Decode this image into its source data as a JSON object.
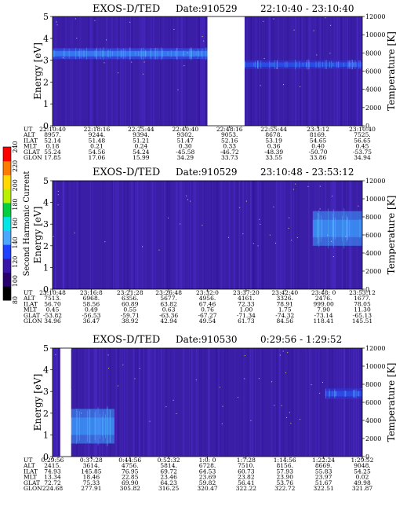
{
  "colorbar": {
    "label": "Second Harmonic Current",
    "ticks": [
      "80",
      "100",
      "120",
      "140",
      "160",
      "180",
      "200",
      "220",
      "240"
    ],
    "colors": [
      "#000000",
      "#2a006e",
      "#3a16a8",
      "#1e40ff",
      "#4aa6ff",
      "#00e5e5",
      "#00d040",
      "#b8f000",
      "#ffd800",
      "#ff7a00",
      "#ff0000"
    ]
  },
  "chart_data": [
    {
      "type": "heatmap",
      "title": "EXOS-D/TED",
      "date_label": "Date:910529",
      "time_range": "22:10:40 - 23:10:40",
      "ylabel": "Energy [eV]",
      "ylabel_right": "Temperature [K]",
      "ylim": [
        0,
        5
      ],
      "yticks": [
        "0",
        "1",
        "2",
        "3",
        "4",
        "5"
      ],
      "y2lim": [
        0,
        12000
      ],
      "y2ticks": [
        "0",
        "2000",
        "4000",
        "6000",
        "8000",
        "10000",
        "12000"
      ],
      "data_gap": [
        0.5,
        0.62
      ],
      "bands": [
        {
          "x0": 0.0,
          "x1": 0.5,
          "y_center": 3.3,
          "y_width": 0.5,
          "level": 140
        },
        {
          "x0": 0.62,
          "x1": 1.0,
          "y_center": 2.8,
          "y_width": 0.4,
          "level": 130
        }
      ],
      "table": {
        "row_labels": [
          "UT",
          "ALT",
          "ILAT",
          "MLT",
          "GLAT",
          "GLON"
        ],
        "columns": [
          [
            "22:10:40",
            "8957.",
            "52.14",
            "0.18",
            "55.24",
            "17.85"
          ],
          [
            "22:18:16",
            "9244.",
            "51.48",
            "0.21",
            "54.56",
            "17.06"
          ],
          [
            "22:25:44",
            "9394.",
            "51.21",
            "0.24",
            "54.24",
            "15.99"
          ],
          [
            "22:40:40",
            "9302.",
            "51.47",
            "0.30",
            "-45.58",
            "34.29"
          ],
          [
            "22:48:16",
            "9053.",
            "52.16",
            "0.33",
            "-46.72",
            "33.73"
          ],
          [
            "22:55:44",
            "8678.",
            "53.19",
            "0.36",
            "-48.39",
            "33.55"
          ],
          [
            "23:3:12",
            "8169.",
            "54.65",
            "0.40",
            "-50.70",
            "33.86"
          ],
          [
            "23:10:40",
            "7525.",
            "56.65",
            "0.45",
            "-53.75",
            "34.94"
          ]
        ]
      }
    },
    {
      "type": "heatmap",
      "title": "EXOS-D/TED",
      "date_label": "Date:910529",
      "time_range": "23:10:48 - 23:53:12",
      "ylabel": "Energy [eV]",
      "ylabel_right": "Temperature [K]",
      "ylim": [
        0,
        5
      ],
      "yticks": [
        "0",
        "1",
        "2",
        "3",
        "4",
        "5"
      ],
      "y2lim": [
        0,
        12000
      ],
      "y2ticks": [
        "0",
        "2000",
        "4000",
        "6000",
        "8000",
        "10000",
        "12000"
      ],
      "bands": [
        {
          "x0": 0.84,
          "x1": 1.0,
          "y_center": 2.8,
          "y_width": 1.6,
          "level": 150
        }
      ],
      "table": {
        "row_labels": [
          "UT",
          "ALT",
          "ILAT",
          "MLT",
          "GLAT",
          "GLON"
        ],
        "columns": [
          [
            "23:10:48",
            "7513.",
            "56.70",
            "0.45",
            "-53.82",
            "34.96"
          ],
          [
            "23:16:8",
            "6968.",
            "58.56",
            "0.49",
            "-56.53",
            "36.47"
          ],
          [
            "23:21:28",
            "6356.",
            "60.89",
            "0.55",
            "-59.71",
            "38.92"
          ],
          [
            "23:26:48",
            "5677.",
            "63.82",
            "0.63",
            "-63.36",
            "42.94"
          ],
          [
            "23:32:0",
            "4956.",
            "67.46",
            "0.76",
            "-67.27",
            "49.54"
          ],
          [
            "23:37:20",
            "4161.",
            "72.33",
            "1.00",
            "-71.34",
            "61.73"
          ],
          [
            "23:42:40",
            "3326.",
            "78.91",
            "1.75",
            "-74.32",
            "84.56"
          ],
          [
            "23:48: 0",
            "2476.",
            "999.00",
            "7.90",
            "-73.14",
            "118.41"
          ],
          [
            "23:53:12",
            "1677.",
            "78.05",
            "11.30",
            "-65.13",
            "145.51"
          ]
        ]
      }
    },
    {
      "type": "heatmap",
      "title": "EXOS-D/TED",
      "date_label": "Date:910530",
      "time_range": "0:29:56 - 1:29:52",
      "ylabel": "Energy [eV]",
      "ylabel_right": "Temperature [K]",
      "ylim": [
        0,
        5
      ],
      "yticks": [
        "0",
        "1",
        "2",
        "3",
        "4",
        "5"
      ],
      "y2lim": [
        0,
        12000
      ],
      "y2ticks": [
        "0",
        "2000",
        "4000",
        "6000",
        "8000",
        "10000",
        "12000"
      ],
      "data_gap": [
        0.025,
        0.06
      ],
      "bands": [
        {
          "x0": 0.06,
          "x1": 0.2,
          "y_center": 1.4,
          "y_width": 1.6,
          "level": 150
        },
        {
          "x0": 0.88,
          "x1": 1.0,
          "y_center": 2.9,
          "y_width": 0.5,
          "level": 130
        }
      ],
      "table": {
        "row_labels": [
          "UT",
          "ALT",
          "ILAT",
          "MLT",
          "GLAT",
          "GLON"
        ],
        "columns": [
          [
            "0:29:56",
            "2415.",
            "74.93",
            "13.34",
            "72.72",
            "224.68"
          ],
          [
            "0:37:28",
            "3614.",
            "145.85",
            "18.46",
            "75.33",
            "277.91"
          ],
          [
            "0:44:56",
            "4756.",
            "76.95",
            "22.85",
            "69.90",
            "305.82"
          ],
          [
            "0:52:32",
            "5814.",
            "69.72",
            "23.46",
            "64.23",
            "316.25"
          ],
          [
            "1:0: 0",
            "6728.",
            "64.53",
            "23.69",
            "59.82",
            "320.47"
          ],
          [
            "1:7:28",
            "7510.",
            "60.73",
            "23.82",
            "56.41",
            "322.22"
          ],
          [
            "1:14:56",
            "8156.",
            "57.93",
            "23.90",
            "53.76",
            "322.72"
          ],
          [
            "1:22:24",
            "8669.",
            "55.83",
            "23.97",
            "51.67",
            "322.51"
          ],
          [
            "1:29:52",
            "9048.",
            "54.25",
            "0.02",
            "49.98",
            "321.87"
          ]
        ]
      }
    }
  ]
}
